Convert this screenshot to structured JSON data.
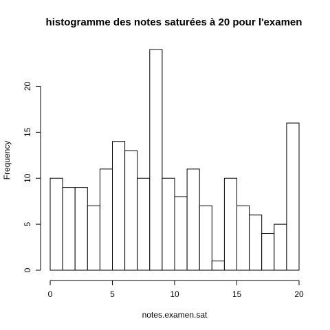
{
  "chart_data": {
    "type": "bar",
    "title": "histogramme des notes saturées à 20 pour l'examen",
    "xlabel": "notes.examen.sat",
    "ylabel": "Frequency",
    "bins": [
      {
        "from": 0,
        "to": 1,
        "count": 10
      },
      {
        "from": 1,
        "to": 2,
        "count": 9
      },
      {
        "from": 2,
        "to": 3,
        "count": 9
      },
      {
        "from": 3,
        "to": 4,
        "count": 7
      },
      {
        "from": 4,
        "to": 5,
        "count": 11
      },
      {
        "from": 5,
        "to": 6,
        "count": 14
      },
      {
        "from": 6,
        "to": 7,
        "count": 13
      },
      {
        "from": 7,
        "to": 8,
        "count": 10
      },
      {
        "from": 8,
        "to": 9,
        "count": 24
      },
      {
        "from": 9,
        "to": 10,
        "count": 10
      },
      {
        "from": 10,
        "to": 11,
        "count": 8
      },
      {
        "from": 11,
        "to": 12,
        "count": 11
      },
      {
        "from": 12,
        "to": 13,
        "count": 7
      },
      {
        "from": 13,
        "to": 14,
        "count": 1
      },
      {
        "from": 14,
        "to": 15,
        "count": 10
      },
      {
        "from": 15,
        "to": 16,
        "count": 7
      },
      {
        "from": 16,
        "to": 17,
        "count": 6
      },
      {
        "from": 17,
        "to": 18,
        "count": 4
      },
      {
        "from": 18,
        "to": 19,
        "count": 5
      },
      {
        "from": 19,
        "to": 20,
        "count": 16
      }
    ],
    "xlim": [
      0,
      20
    ],
    "ylim": [
      0,
      24
    ],
    "xticks": [
      0,
      5,
      10,
      15,
      20
    ],
    "yticks": [
      0,
      5,
      10,
      15,
      20
    ],
    "grid": false,
    "bar_fill": "#ffffff",
    "bar_stroke": "#000000"
  }
}
